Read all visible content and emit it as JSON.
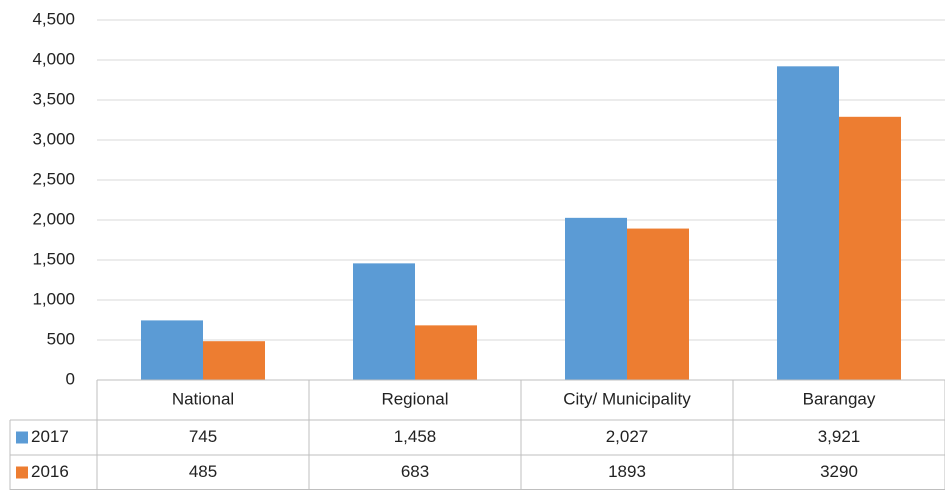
{
  "chart_data": {
    "type": "bar",
    "categories": [
      "National",
      "Regional",
      "City/ Municipality",
      "Barangay"
    ],
    "series": [
      {
        "name": "2017",
        "color": "#5b9bd5",
        "values": [
          745,
          1458,
          2027,
          3921
        ],
        "value_labels": [
          "745",
          "1,458",
          "2,027",
          "3,921"
        ]
      },
      {
        "name": "2016",
        "color": "#ed7d31",
        "values": [
          485,
          683,
          1893,
          3290
        ]
      }
    ],
    "ylim": [
      0,
      4500
    ],
    "yticks": [
      0,
      500,
      {
        "value": 1000,
        "label": "1,000"
      },
      {
        "value": 1500,
        "label": "1,500"
      },
      {
        "value": 2000,
        "label": "2,000"
      },
      {
        "value": 2500,
        "label": "2,500"
      },
      {
        "value": 3000,
        "label": "3,000"
      },
      {
        "value": 3500,
        "label": "3,500"
      },
      {
        "value": 4000,
        "label": "4,000"
      },
      {
        "value": 4500,
        "label": "4,500"
      }
    ],
    "grid": true,
    "data_table": true
  }
}
